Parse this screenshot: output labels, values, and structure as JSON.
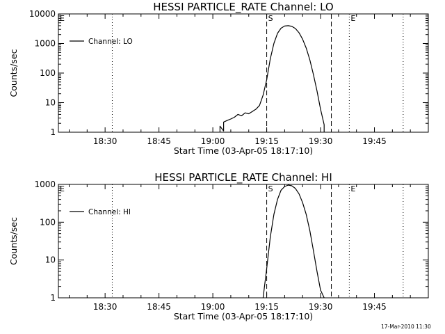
{
  "footer": {
    "timestamp": "17-Mar-2010 11:30"
  },
  "chart_data": [
    {
      "type": "line",
      "title": "HESSI PARTICLE_RATE Channel: LO",
      "xlabel": "Start Time (03-Apr-05 18:17:10)",
      "ylabel": "Counts/sec",
      "yscale": "log",
      "ylim": [
        1,
        10000
      ],
      "xlim": [
        "18:17",
        "20:00"
      ],
      "xticks": [
        "18:30",
        "18:45",
        "19:00",
        "19:15",
        "19:30",
        "19:45"
      ],
      "yticks": [
        "1",
        "10",
        "100",
        "1000",
        "10000"
      ],
      "legend": {
        "position": "top-left",
        "entries": [
          "Channel: LO"
        ]
      },
      "markers": [
        {
          "label": "E",
          "time": "18:17",
          "style": "dotted"
        },
        {
          "label": "",
          "time": "18:32",
          "style": "dotted"
        },
        {
          "label": "S",
          "time": "19:15",
          "style": "dashed"
        },
        {
          "label": "",
          "time": "19:33",
          "style": "dashed"
        },
        {
          "label": "E",
          "time": "19:38",
          "style": "dotted"
        },
        {
          "label": "",
          "time": "19:53",
          "style": "dotted"
        }
      ],
      "series": [
        {
          "name": "Channel: LO",
          "x": [
            "19:02",
            "19:02",
            "19:03",
            "19:03",
            "19:04",
            "19:05",
            "19:06",
            "19:07",
            "19:08",
            "19:09",
            "19:10",
            "19:11",
            "19:12",
            "19:13",
            "19:14",
            "19:15",
            "19:16",
            "19:17",
            "19:18",
            "19:19",
            "19:20",
            "19:21",
            "19:22",
            "19:23",
            "19:24",
            "19:25",
            "19:26",
            "19:27",
            "19:28",
            "19:29",
            "19:30",
            "19:31",
            "19:31"
          ],
          "y": [
            1,
            1.6,
            1.1,
            2.2,
            2.5,
            2.8,
            3.2,
            4.0,
            3.6,
            4.5,
            4.2,
            5.0,
            6.0,
            8.0,
            18,
            60,
            300,
            1000,
            2200,
            3300,
            3900,
            4000,
            3800,
            3200,
            2300,
            1400,
            700,
            280,
            90,
            25,
            6,
            1.8,
            1
          ]
        }
      ]
    },
    {
      "type": "line",
      "title": "HESSI PARTICLE_RATE Channel: HI",
      "xlabel": "Start Time (03-Apr-05 18:17:10)",
      "ylabel": "Counts/sec",
      "yscale": "log",
      "ylim": [
        1,
        1000
      ],
      "xlim": [
        "18:17",
        "20:00"
      ],
      "xticks": [
        "18:30",
        "18:45",
        "19:00",
        "19:15",
        "19:30",
        "19:45"
      ],
      "yticks": [
        "1",
        "10",
        "100",
        "1000"
      ],
      "legend": {
        "position": "top-left",
        "entries": [
          "Channel: HI"
        ]
      },
      "markers": [
        {
          "label": "E",
          "time": "18:17",
          "style": "dotted"
        },
        {
          "label": "",
          "time": "18:32",
          "style": "dotted"
        },
        {
          "label": "S",
          "time": "19:15",
          "style": "dashed"
        },
        {
          "label": "",
          "time": "19:33",
          "style": "dashed"
        },
        {
          "label": "E",
          "time": "19:38",
          "style": "dotted"
        },
        {
          "label": "",
          "time": "19:53",
          "style": "dotted"
        }
      ],
      "series": [
        {
          "name": "Channel: HI",
          "x": [
            "19:14",
            "19:15",
            "19:16",
            "19:17",
            "19:18",
            "19:19",
            "19:20",
            "19:21",
            "19:22",
            "19:23",
            "19:24",
            "19:25",
            "19:26",
            "19:27",
            "19:28",
            "19:29",
            "19:30",
            "19:31"
          ],
          "y": [
            1,
            6,
            40,
            160,
            400,
            700,
            880,
            960,
            920,
            780,
            560,
            330,
            160,
            60,
            18,
            5,
            1.6,
            1
          ]
        }
      ]
    }
  ]
}
